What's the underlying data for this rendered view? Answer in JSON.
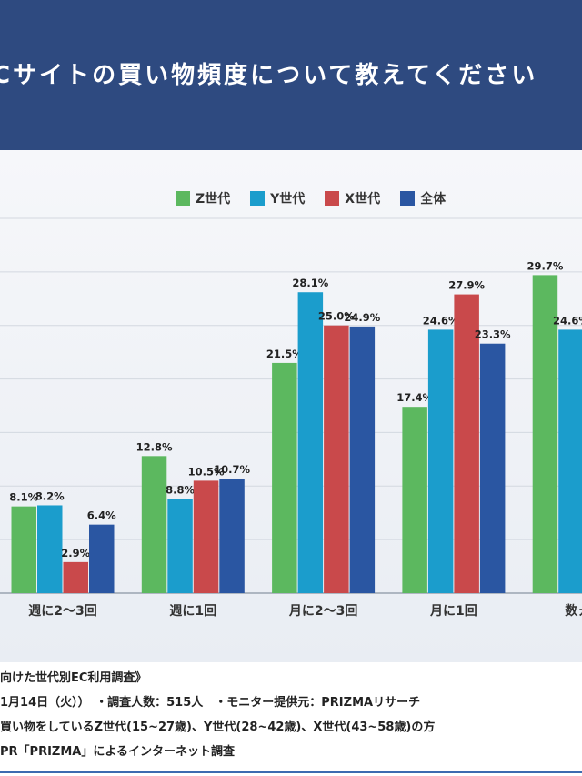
{
  "header": {
    "title": "Cサイトの買い物頻度について教えてください"
  },
  "chart_data": {
    "type": "bar",
    "title": "Cサイトの買い物頻度について教えてください",
    "categories": [
      "週に2〜3回",
      "週に1回",
      "月に2〜3回",
      "月に1回",
      "数ヵ月"
    ],
    "series": [
      {
        "name": "Z世代",
        "color": "#5cb85f",
        "values": [
          8.1,
          12.8,
          21.5,
          17.4,
          29.7
        ]
      },
      {
        "name": "Y世代",
        "color": "#1b9dcc",
        "values": [
          8.2,
          8.8,
          28.1,
          24.6,
          24.6
        ]
      },
      {
        "name": "X世代",
        "color": "#c9494b",
        "values": [
          2.9,
          10.5,
          25.0,
          27.9,
          null
        ]
      },
      {
        "name": "全体",
        "color": "#2a56a2",
        "values": [
          6.4,
          10.7,
          24.9,
          23.3,
          null
        ]
      }
    ],
    "ylim": [
      0,
      35
    ],
    "grid": true,
    "legend": "top-center",
    "value_suffix": "%"
  },
  "footer": {
    "lines": [
      "向けた世代別EC利用調査》",
      "1月14日（火））　・調査人数：515人　・モニター提供元：PRIZMAリサーチ",
      "買い物をしているZ世代(15~27歳)、Y世代(28~42歳)、X世代(43~58歳)の方",
      "PR「PRIZMA」によるインターネット調査"
    ]
  }
}
